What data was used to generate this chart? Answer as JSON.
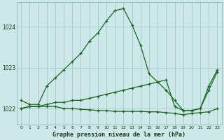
{
  "background_color": "#cce8e8",
  "grid_color": "#aacccc",
  "line_color": "#1a6620",
  "title": "Graphe pression niveau de la mer (hPa)",
  "xlim": [
    -0.5,
    23.5
  ],
  "ylim": [
    1021.6,
    1024.6
  ],
  "yticks": [
    1022,
    1023,
    1024
  ],
  "xticks": [
    0,
    1,
    2,
    3,
    4,
    5,
    6,
    7,
    8,
    9,
    10,
    11,
    12,
    13,
    14,
    15,
    16,
    17,
    18,
    19,
    20,
    21,
    22,
    23
  ],
  "series": [
    {
      "x": [
        0,
        1,
        2,
        3,
        4,
        5,
        6,
        7,
        8,
        9,
        10,
        11,
        12,
        13,
        14,
        15,
        16,
        17,
        18,
        19,
        20,
        21,
        22,
        23
      ],
      "y": [
        1022.2,
        1022.1,
        1022.1,
        1022.55,
        1022.75,
        1022.95,
        1023.15,
        1023.35,
        1023.65,
        1023.85,
        1024.15,
        1024.4,
        1024.45,
        1024.05,
        1023.55,
        1022.85,
        1022.65,
        1022.45,
        1022.2,
        1021.95,
        1021.95,
        1022.0,
        1022.55,
        1022.95
      ]
    },
    {
      "x": [
        0,
        1,
        2,
        3,
        4,
        5,
        6,
        7,
        8,
        9,
        10,
        11,
        12,
        13,
        14,
        15,
        16,
        17,
        18,
        19,
        20,
        21,
        22,
        23
      ],
      "y": [
        1022.0,
        1022.05,
        1022.05,
        1022.1,
        1022.15,
        1022.15,
        1022.2,
        1022.2,
        1022.25,
        1022.3,
        1022.35,
        1022.4,
        1022.45,
        1022.5,
        1022.55,
        1022.6,
        1022.65,
        1022.7,
        1022.05,
        1021.95,
        1021.95,
        1022.0,
        1022.45,
        1022.9
      ]
    },
    {
      "x": [
        0,
        1,
        2,
        3,
        4,
        5,
        6,
        7,
        8,
        9,
        10,
        11,
        12,
        13,
        14,
        15,
        16,
        17,
        18,
        19,
        20,
        21,
        22,
        23
      ],
      "y": [
        1022.0,
        1022.05,
        1022.05,
        1022.05,
        1022.05,
        1022.0,
        1022.0,
        1021.98,
        1021.97,
        1021.95,
        1021.95,
        1021.93,
        1021.93,
        1021.93,
        1021.93,
        1021.92,
        1021.92,
        1021.9,
        1021.88,
        1021.85,
        1021.88,
        1021.9,
        1021.92,
        1022.0
      ]
    }
  ]
}
